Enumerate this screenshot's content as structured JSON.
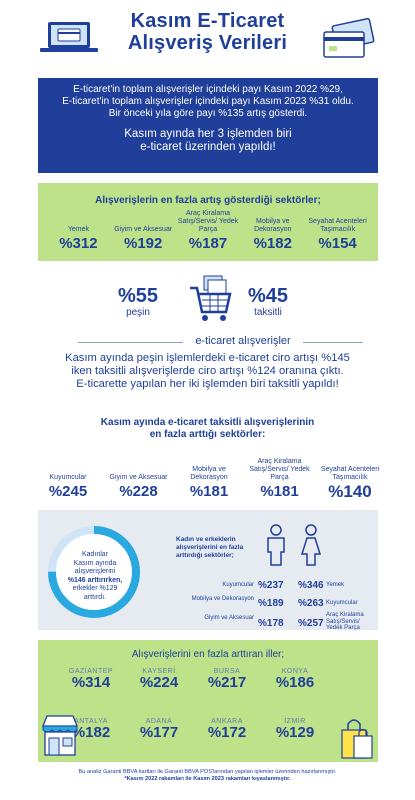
{
  "header": {
    "title_line1": "Kasım E-Ticaret",
    "title_line2": "Alışveriş Verileri"
  },
  "intro": {
    "line1": "E-ticaret'in toplam alışverişler içindeki payı Kasım 2022 %29,",
    "line2": "E-ticaret'in toplam alışverişler içindeki payı Kasım 2023 %31 oldu.",
    "line3": "Bir önceki yıla göre payı %135 artış gösterdi.",
    "lead1": "Kasım ayında her 3 işlemden biri",
    "lead2": "e-ticaret üzerinden yapıldı!"
  },
  "top_sectors": {
    "heading": "Alışverişlerin en fazla artış gösterdiği sektörler;",
    "items": [
      {
        "label": "Yemek",
        "value": "%312"
      },
      {
        "label": "Giyim ve Aksesuar",
        "value": "%192"
      },
      {
        "label": "Araç Kiralama Satış/Servis/ Yedek Parça",
        "value": "%187"
      },
      {
        "label": "Mobilya ve Dekorasyon",
        "value": "%182"
      },
      {
        "label": "Seyahat Acenteleri Taşımacılık",
        "value": "%154"
      }
    ]
  },
  "payment": {
    "cash_value": "%55",
    "cash_label": "peşin",
    "installment_value": "%45",
    "installment_label": "taksitli",
    "section_label": "e-ticaret alışverişler"
  },
  "paragraph": {
    "line1": "Kasım ayında peşin işlemlerdeki e-ticaret ciro artışı %145",
    "line2": "iken taksitli alışverişlerde ciro artışı %124 oranına çıktı.",
    "line3": "E-ticarette yapılan her iki işlemden biri taksitli yapıldı!"
  },
  "installment_sectors": {
    "heading1": "Kasım ayında e-ticaret taksitli alışverişlerinin",
    "heading2": "en fazla arttığı sektörler:",
    "items": [
      {
        "label": "Kuyumcular",
        "value": "%245"
      },
      {
        "label": "Giyim ve Aksesuar",
        "value": "%228"
      },
      {
        "label": "Mobilya ve Dekorasyon",
        "value": "%181"
      },
      {
        "label": "Araç Kiralama Satış/Servis/ Yedek Parça",
        "value": "%181"
      },
      {
        "label": "Seyahat Acenteleri Taşımacılık",
        "value": "%140"
      }
    ]
  },
  "gender": {
    "ring_text_1": "Kadınlar",
    "ring_text_2": "Kasım ayında",
    "ring_text_3": "alışverişlerini",
    "ring_text_4": "%146 arttırırken,",
    "ring_text_5": "erkekler %129",
    "ring_text_6": "arttırdı.",
    "ring_fraction": 0.75,
    "heading": "Kadın ve erkeklerin alışverişlerini en fazla arttırdığı sektörler;",
    "rows": [
      {
        "left_label": "Kuyumcular",
        "men": "%237",
        "women": "%346",
        "right_label": "Yemek"
      },
      {
        "left_label": "Mobilya ve Dekorasyon",
        "men": "%189",
        "women": "%263",
        "right_label": "Kuyumcular"
      },
      {
        "left_label": "Giyim ve Aksesuar",
        "men": "%178",
        "women": "%257",
        "right_label": "Araç Kiralama Satış/Servis/ Yedek Parça"
      }
    ]
  },
  "cities": {
    "heading": "Alışverişlerini en fazla arttıran iller;",
    "row1": [
      {
        "name": "GAZİANTEP",
        "value": "%314"
      },
      {
        "name": "KAYSERİ",
        "value": "%224"
      },
      {
        "name": "BURSA",
        "value": "%217"
      },
      {
        "name": "KONYA",
        "value": "%186"
      }
    ],
    "row2": [
      {
        "name": "ANTALYA",
        "value": "%182"
      },
      {
        "name": "ADANA",
        "value": "%177"
      },
      {
        "name": "ANKARA",
        "value": "%172"
      },
      {
        "name": "İZMİR",
        "value": "%129"
      }
    ]
  },
  "footer": {
    "line1": "Bu analiz Garanti BBVA kartları ile Garanti BBVA POS'larından yapılan işlemler üzerinden hazırlanmıştır.",
    "line2": "*Kasım 2022 rakamları ile Kasım 2023 rakamları kıyaslanmıştır."
  },
  "colors": {
    "navy": "#1f3f9a",
    "green": "#bde28a",
    "panel": "#e6ebf2",
    "cyan": "#2aa8e0"
  }
}
